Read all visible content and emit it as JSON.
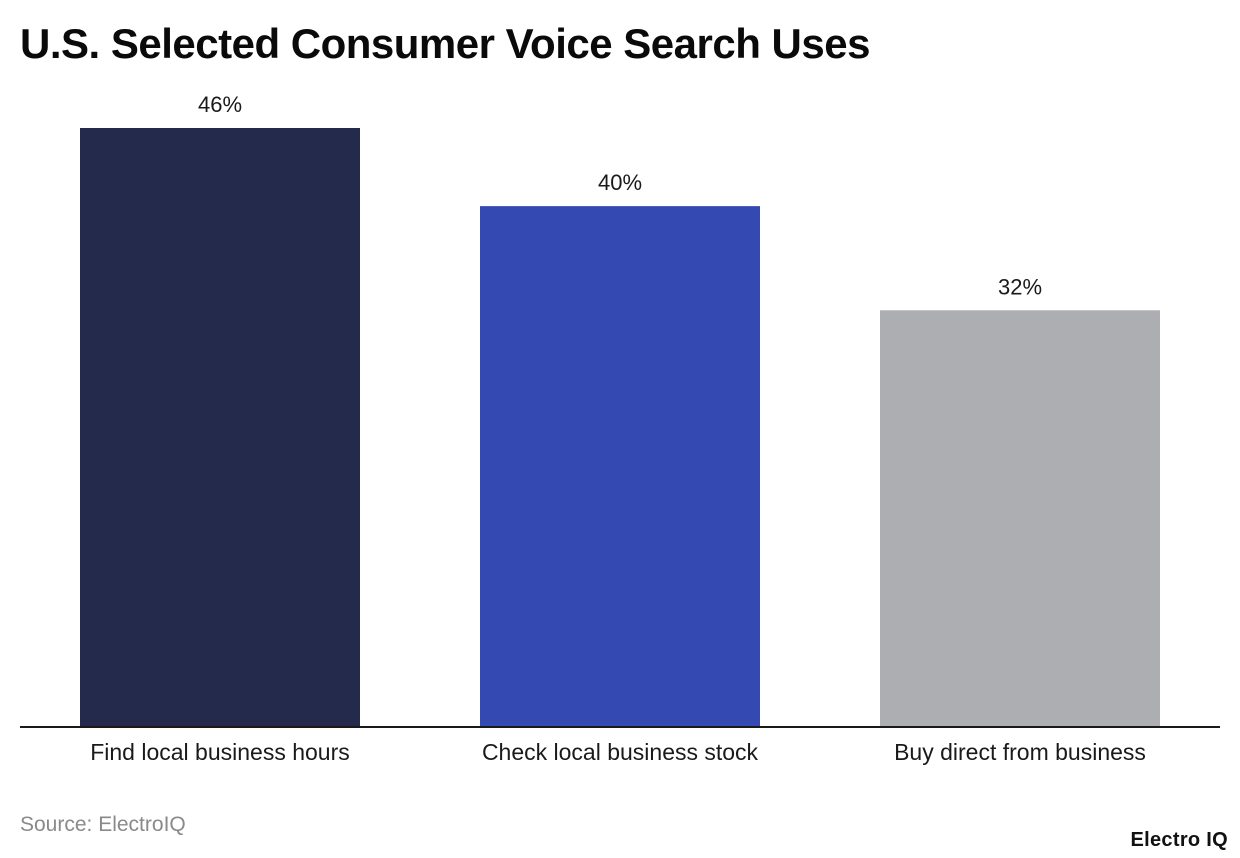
{
  "title": "U.S. Selected Consumer Voice Search Uses",
  "source": "Source: ElectroIQ",
  "brand": "Electro IQ",
  "chart_data": {
    "type": "bar",
    "title": "U.S. Selected Consumer Voice Search Uses",
    "categories": [
      "Find local business hours",
      "Check local business stock",
      "Buy direct from business"
    ],
    "values": [
      46,
      40,
      32
    ],
    "value_labels": [
      "46%",
      "40%",
      "32%"
    ],
    "colors": [
      "#242a4b",
      "#3449b1",
      "#adaeb2"
    ],
    "xlabel": "",
    "ylabel": "",
    "ylim": [
      0,
      46
    ],
    "grid": false,
    "legend": "none"
  }
}
